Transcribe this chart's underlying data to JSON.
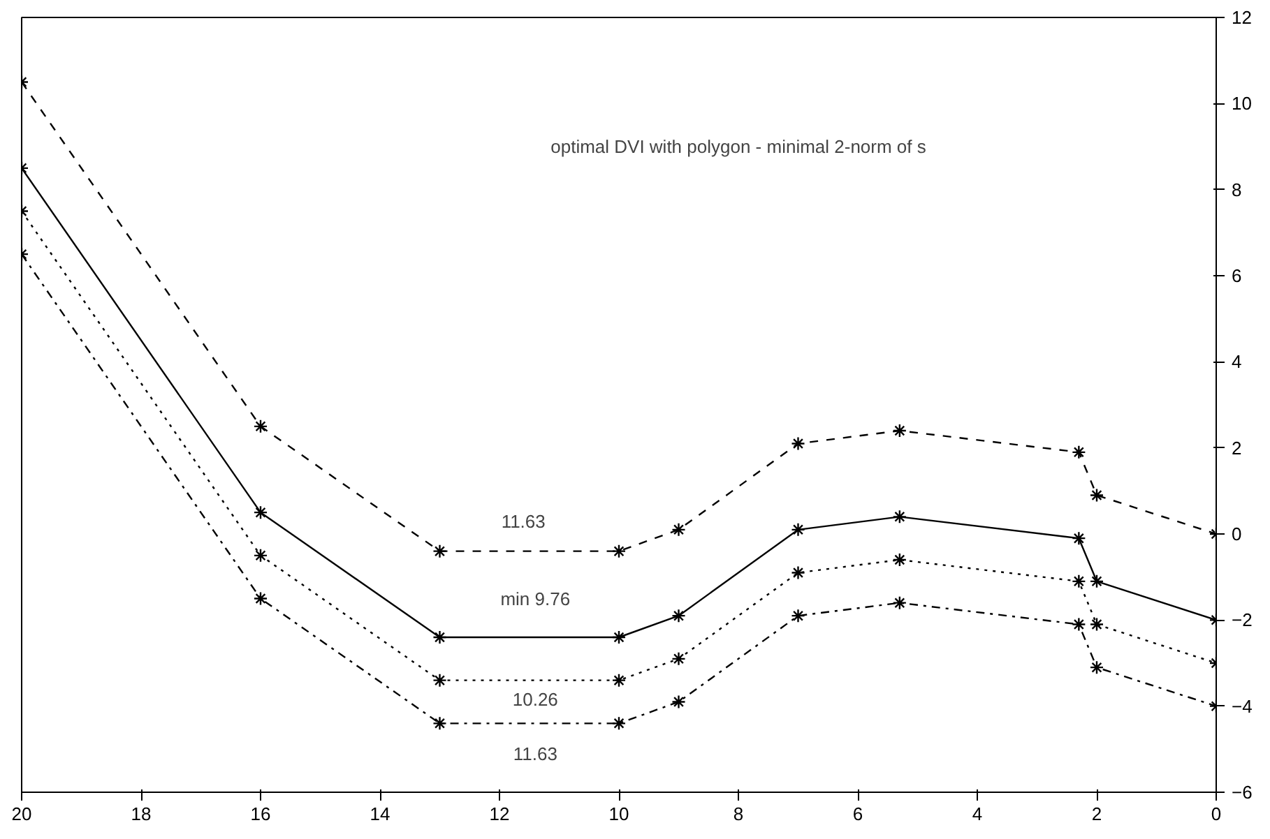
{
  "chart_data": {
    "type": "line",
    "x": [
      20,
      16,
      13,
      10,
      9,
      7,
      5.3,
      2.3,
      2,
      0
    ],
    "series": [
      {
        "color": "#000000",
        "line_style": "dashed",
        "values": [
          10.5,
          2.5,
          -0.4,
          -0.4,
          0.1,
          2.1,
          2.4,
          1.9,
          0.9,
          0
        ]
      },
      {
        "color": "#000000",
        "line_style": "solid",
        "values": [
          8.5,
          0.5,
          -2.4,
          -2.4,
          -1.9,
          0.1,
          0.4,
          -0.1,
          -1.1,
          -2
        ]
      },
      {
        "color": "#000000",
        "line_style": "dotted",
        "values": [
          7.5,
          -0.5,
          -3.4,
          -3.4,
          -2.9,
          -0.9,
          -0.6,
          -1.1,
          -2.1,
          -3
        ]
      },
      {
        "color": "#000000",
        "line_style": "dashdot",
        "values": [
          6.5,
          -1.5,
          -4.4,
          -4.4,
          -3.9,
          -1.9,
          -1.6,
          -2.1,
          -3.1,
          -4
        ]
      }
    ],
    "xlim": [
      20,
      0
    ],
    "xticks": [
      0,
      2,
      4,
      6,
      8,
      10,
      12,
      14,
      16,
      18,
      20
    ],
    "ylim": [
      -6,
      12
    ],
    "yticks": [
      -6,
      -4,
      -2,
      0,
      2,
      4,
      6,
      8,
      10,
      12
    ],
    "marker": "cross",
    "grid": false,
    "annotations": [
      "optimal DVI with polygon - minimal 2-norm of s",
      "11.63",
      "min 9.76",
      "10.26",
      "11.63"
    ]
  }
}
